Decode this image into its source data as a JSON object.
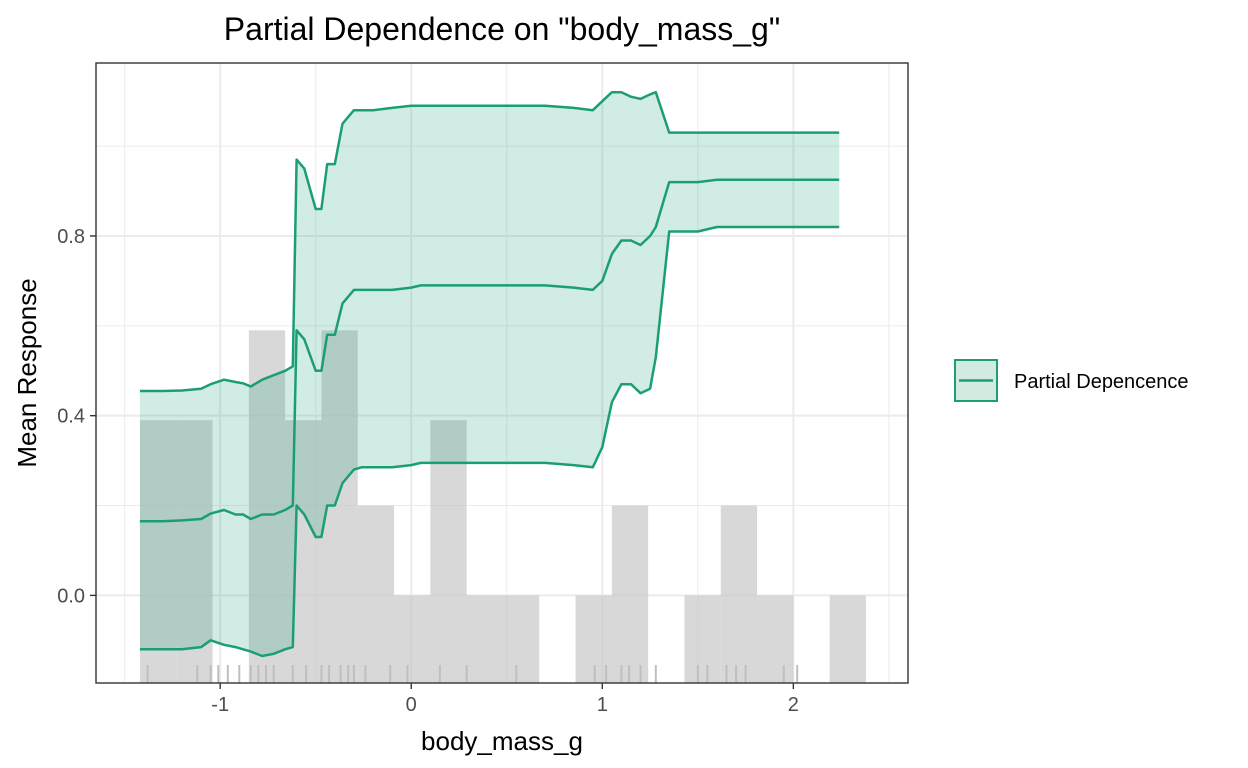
{
  "chart_data": {
    "type": "line",
    "title": "Partial Dependence on \"body_mass_g\"",
    "xlabel": "body_mass_g",
    "ylabel": "Mean Response",
    "xlim": [
      -1.65,
      2.6
    ],
    "ylim": [
      -0.195,
      1.185
    ],
    "x_ticks": [
      -1,
      0,
      1,
      2
    ],
    "x_tick_labels": [
      "-1",
      "0",
      "1",
      "2"
    ],
    "y_ticks": [
      0.0,
      0.4,
      0.8
    ],
    "y_tick_labels": [
      "0.0",
      "0.4",
      "0.8"
    ],
    "grid": true,
    "legend_position": "right",
    "colors": {
      "line": "#1b9e77",
      "ribbon": "#d3eae1",
      "histogram": "#c8c8c8",
      "grid": "#ebebeb",
      "rug": "#bfbfbf"
    },
    "series": [
      {
        "name": "Partial Depencence",
        "x": [
          -1.42,
          -1.3,
          -1.2,
          -1.1,
          -1.05,
          -0.98,
          -0.92,
          -0.88,
          -0.84,
          -0.78,
          -0.72,
          -0.66,
          -0.62,
          -0.6,
          -0.56,
          -0.5,
          -0.47,
          -0.44,
          -0.4,
          -0.36,
          -0.32,
          -0.3,
          -0.26,
          -0.2,
          -0.1,
          0.0,
          0.05,
          0.1,
          0.3,
          0.5,
          0.7,
          0.85,
          0.95,
          1.0,
          1.05,
          1.1,
          1.15,
          1.2,
          1.25,
          1.28,
          1.35,
          1.5,
          1.6,
          2.0,
          2.24
        ],
        "values": [
          0.165,
          0.165,
          0.167,
          0.17,
          0.182,
          0.19,
          0.18,
          0.18,
          0.17,
          0.18,
          0.18,
          0.19,
          0.2,
          0.59,
          0.57,
          0.5,
          0.5,
          0.58,
          0.58,
          0.65,
          0.67,
          0.68,
          0.68,
          0.68,
          0.68,
          0.685,
          0.69,
          0.69,
          0.69,
          0.69,
          0.69,
          0.685,
          0.68,
          0.7,
          0.76,
          0.79,
          0.79,
          0.78,
          0.8,
          0.82,
          0.92,
          0.92,
          0.925,
          0.925,
          0.925
        ],
        "lower": [
          -0.12,
          -0.12,
          -0.12,
          -0.115,
          -0.1,
          -0.11,
          -0.115,
          -0.12,
          -0.125,
          -0.135,
          -0.13,
          -0.12,
          -0.115,
          0.2,
          0.18,
          0.13,
          0.13,
          0.2,
          0.2,
          0.25,
          0.27,
          0.28,
          0.285,
          0.285,
          0.285,
          0.29,
          0.295,
          0.295,
          0.295,
          0.295,
          0.295,
          0.29,
          0.285,
          0.33,
          0.43,
          0.47,
          0.47,
          0.45,
          0.46,
          0.53,
          0.81,
          0.81,
          0.82,
          0.82,
          0.82
        ],
        "upper": [
          0.455,
          0.455,
          0.456,
          0.46,
          0.47,
          0.48,
          0.475,
          0.472,
          0.465,
          0.48,
          0.49,
          0.5,
          0.51,
          0.97,
          0.95,
          0.86,
          0.86,
          0.96,
          0.96,
          1.05,
          1.07,
          1.08,
          1.08,
          1.08,
          1.085,
          1.09,
          1.09,
          1.09,
          1.09,
          1.09,
          1.09,
          1.085,
          1.08,
          1.1,
          1.12,
          1.12,
          1.11,
          1.105,
          1.115,
          1.12,
          1.03,
          1.03,
          1.03,
          1.03,
          1.03
        ]
      }
    ],
    "histogram": {
      "bin_width": 0.19,
      "bins": [
        {
          "x0": -1.42,
          "x1": -1.23,
          "value": 0.39
        },
        {
          "x0": -1.23,
          "x1": -1.04,
          "value": 0.39
        },
        {
          "x0": -0.85,
          "x1": -0.66,
          "value": 0.59
        },
        {
          "x0": -0.66,
          "x1": -0.47,
          "value": 0.39
        },
        {
          "x0": -0.47,
          "x1": -0.28,
          "value": 0.59
        },
        {
          "x0": -0.28,
          "x1": -0.09,
          "value": 0.2
        },
        {
          "x0": -0.09,
          "x1": 0.1,
          "value": 0.0
        },
        {
          "x0": 0.1,
          "x1": 0.29,
          "value": 0.39
        },
        {
          "x0": 0.29,
          "x1": 0.48,
          "value": 0.0
        },
        {
          "x0": 0.48,
          "x1": 0.67,
          "value": 0.0
        },
        {
          "x0": 0.86,
          "x1": 1.05,
          "value": 0.0
        },
        {
          "x0": 1.05,
          "x1": 1.24,
          "value": 0.2
        },
        {
          "x0": 1.43,
          "x1": 1.62,
          "value": 0.0
        },
        {
          "x0": 1.62,
          "x1": 1.81,
          "value": 0.2
        },
        {
          "x0": 1.81,
          "x1": 2.0,
          "value": 0.0
        },
        {
          "x0": 2.19,
          "x1": 2.38,
          "value": 0.0
        }
      ]
    },
    "rug": [
      -1.38,
      -1.12,
      -1.05,
      -1.01,
      -0.96,
      -0.9,
      -0.84,
      -0.8,
      -0.76,
      -0.72,
      -0.62,
      -0.55,
      -0.47,
      -0.43,
      -0.37,
      -0.33,
      -0.3,
      -0.24,
      -0.11,
      -0.02,
      0.15,
      0.29,
      0.55,
      0.96,
      1.02,
      1.1,
      1.14,
      1.2,
      1.28,
      1.5,
      1.55,
      1.65,
      1.7,
      1.75,
      1.95,
      2.02
    ]
  }
}
